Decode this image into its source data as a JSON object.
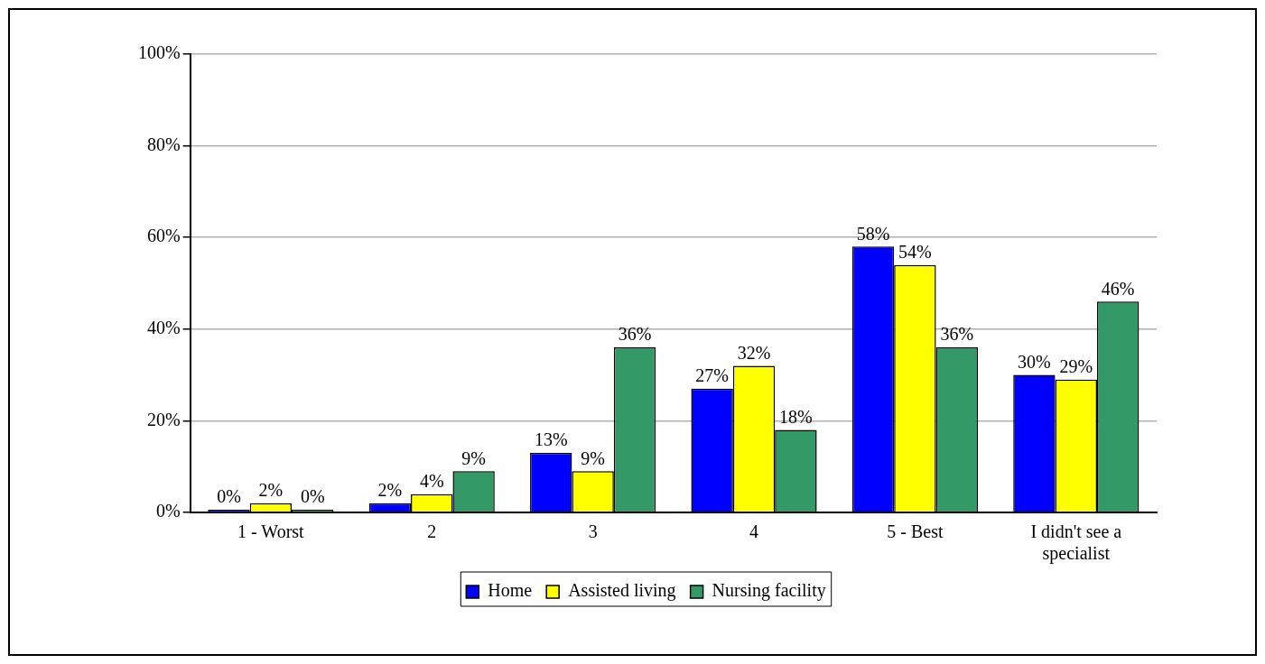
{
  "chart_data": {
    "type": "bar",
    "categories": [
      "1 - Worst",
      "2",
      "3",
      "4",
      "5 - Best",
      "I didn't see a specialist"
    ],
    "series": [
      {
        "name": "Home",
        "color": "#0000ff",
        "values": [
          0,
          2,
          13,
          27,
          58,
          30
        ],
        "value_labels": [
          "0%",
          "2%",
          "13%",
          "27%",
          "58%",
          "30%"
        ]
      },
      {
        "name": "Assisted living",
        "color": "#ffff00",
        "values": [
          2,
          4,
          9,
          32,
          54,
          29
        ],
        "value_labels": [
          "2%",
          "4%",
          "9%",
          "32%",
          "54%",
          "29%"
        ]
      },
      {
        "name": "Nursing facility",
        "color": "#339966",
        "values": [
          0,
          9,
          36,
          18,
          36,
          46
        ],
        "value_labels": [
          "0%",
          "9%",
          "36%",
          "18%",
          "36%",
          "46%"
        ]
      }
    ],
    "ylim": [
      0,
      100
    ],
    "yticks": [
      {
        "value": 0,
        "label": "0%"
      },
      {
        "value": 20,
        "label": "20%"
      },
      {
        "value": 40,
        "label": "40%"
      },
      {
        "value": 60,
        "label": "60%"
      },
      {
        "value": 80,
        "label": "80%"
      },
      {
        "value": 100,
        "label": "100%"
      }
    ],
    "grid": "y",
    "legend": "bottom"
  }
}
